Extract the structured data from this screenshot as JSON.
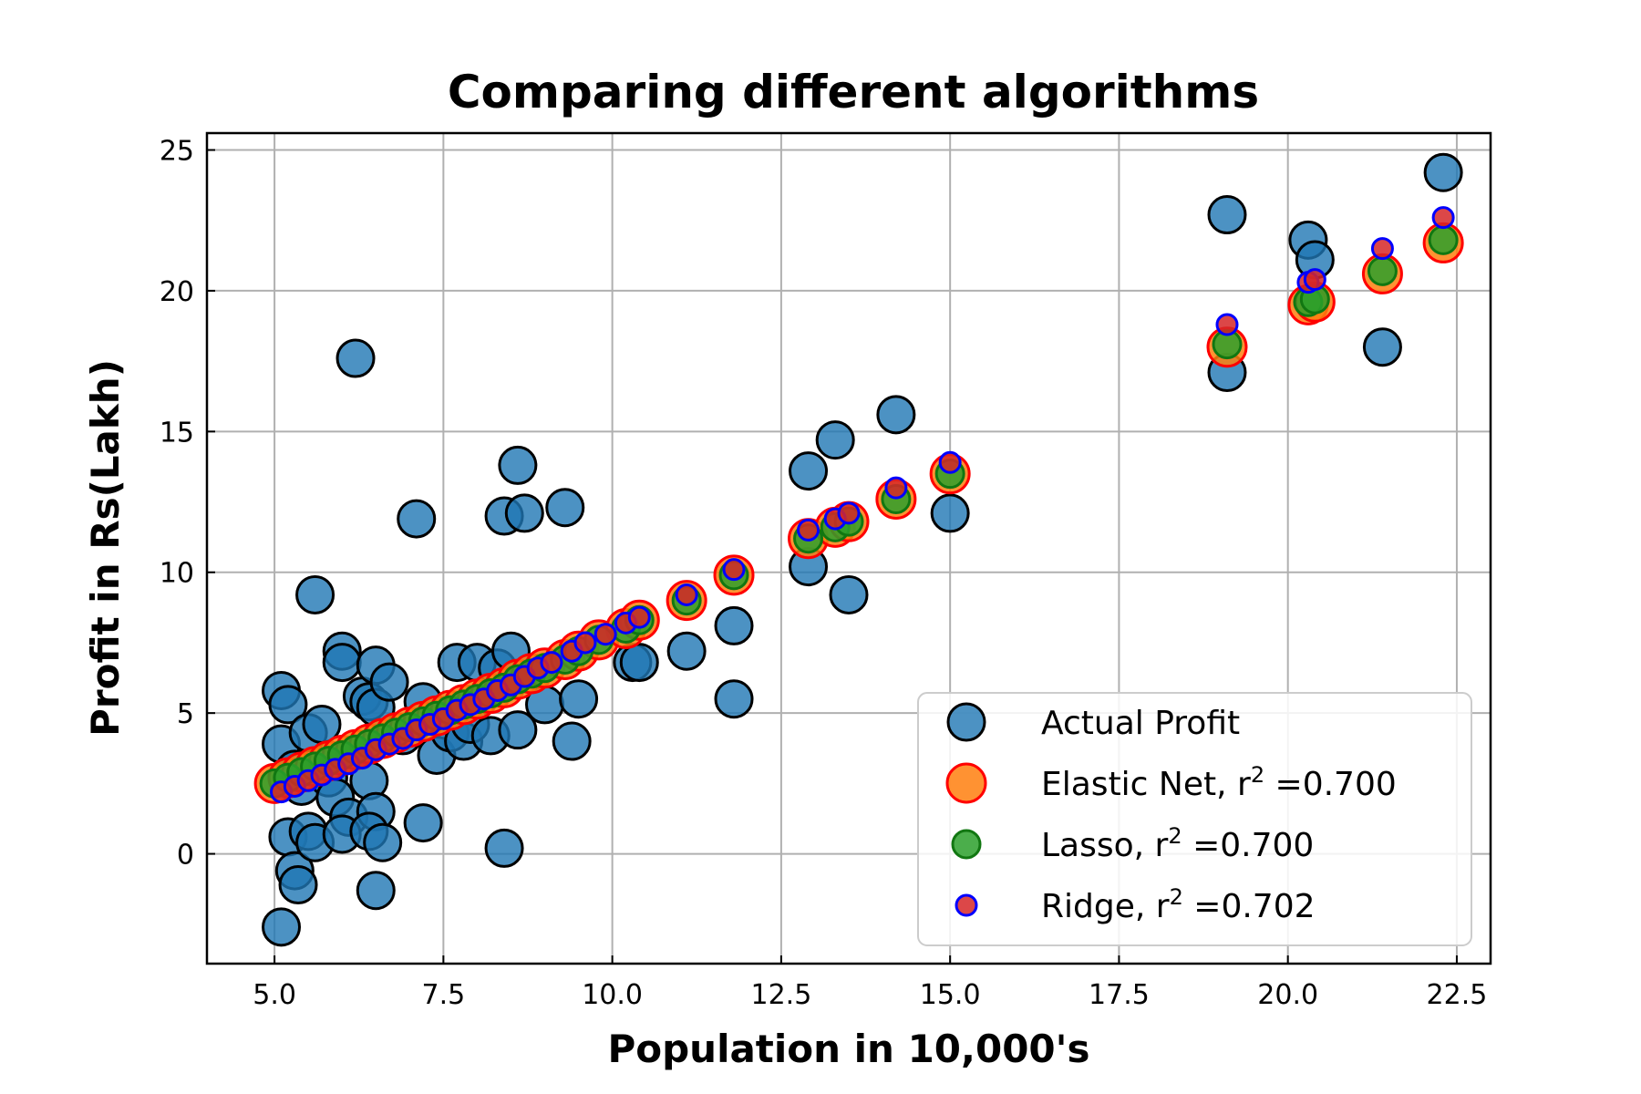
{
  "chart_data": {
    "type": "scatter",
    "title": "Comparing different algorithms",
    "xlabel": "Population in 10,000's",
    "ylabel": "Profit in Rs(Lakh)",
    "xlim": [
      4.0,
      23.0
    ],
    "ylim": [
      -3.9,
      25.6
    ],
    "xticks": [
      5.0,
      7.5,
      10.0,
      12.5,
      15.0,
      17.5,
      20.0,
      22.5
    ],
    "xtick_labels": [
      "5.0",
      "7.5",
      "10.0",
      "12.5",
      "15.0",
      "17.5",
      "20.0",
      "22.5"
    ],
    "yticks": [
      0,
      5,
      10,
      15,
      20,
      25
    ],
    "ytick_labels": [
      "0",
      "5",
      "10",
      "15",
      "20",
      "25"
    ],
    "grid": true,
    "legend_position": "lower-right",
    "series": [
      {
        "name": "Actual Profit",
        "color": "#1f77b4",
        "points": [
          [
            5.1,
            5.8
          ],
          [
            5.2,
            5.3
          ],
          [
            5.1,
            3.9
          ],
          [
            5.3,
            3.0
          ],
          [
            5.4,
            2.4
          ],
          [
            5.2,
            0.6
          ],
          [
            5.3,
            -0.6
          ],
          [
            5.35,
            -1.1
          ],
          [
            5.1,
            -2.6
          ],
          [
            5.5,
            0.8
          ],
          [
            5.6,
            0.4
          ],
          [
            5.5,
            4.3
          ],
          [
            5.7,
            4.6
          ],
          [
            5.6,
            9.2
          ],
          [
            5.8,
            2.7
          ],
          [
            5.9,
            2.0
          ],
          [
            6.0,
            7.2
          ],
          [
            6.0,
            6.8
          ],
          [
            6.1,
            1.3
          ],
          [
            6.0,
            0.7
          ],
          [
            6.2,
            17.6
          ],
          [
            6.3,
            5.6
          ],
          [
            6.4,
            5.4
          ],
          [
            6.5,
            6.7
          ],
          [
            6.5,
            5.2
          ],
          [
            6.4,
            2.6
          ],
          [
            6.5,
            1.5
          ],
          [
            6.4,
            0.8
          ],
          [
            6.6,
            0.4
          ],
          [
            6.5,
            -1.3
          ],
          [
            6.7,
            6.1
          ],
          [
            6.9,
            4.2
          ],
          [
            7.1,
            11.9
          ],
          [
            7.2,
            5.4
          ],
          [
            7.2,
            1.1
          ],
          [
            7.4,
            3.5
          ],
          [
            7.6,
            4.3
          ],
          [
            7.7,
            6.8
          ],
          [
            7.8,
            4.0
          ],
          [
            7.9,
            4.6
          ],
          [
            8.0,
            6.8
          ],
          [
            8.2,
            4.2
          ],
          [
            8.3,
            6.6
          ],
          [
            8.4,
            12.0
          ],
          [
            8.4,
            0.2
          ],
          [
            8.5,
            7.2
          ],
          [
            8.6,
            4.4
          ],
          [
            8.6,
            13.8
          ],
          [
            8.7,
            12.1
          ],
          [
            9.0,
            5.3
          ],
          [
            9.3,
            12.3
          ],
          [
            9.4,
            4.0
          ],
          [
            9.5,
            5.5
          ],
          [
            10.3,
            6.8
          ],
          [
            10.4,
            6.8
          ],
          [
            11.1,
            7.2
          ],
          [
            11.8,
            8.1
          ],
          [
            11.8,
            5.5
          ],
          [
            12.9,
            10.2
          ],
          [
            12.9,
            13.6
          ],
          [
            13.3,
            14.7
          ],
          [
            13.5,
            9.2
          ],
          [
            14.2,
            15.6
          ],
          [
            15.0,
            12.1
          ],
          [
            19.1,
            22.7
          ],
          [
            19.1,
            17.1
          ],
          [
            20.3,
            21.8
          ],
          [
            20.4,
            21.1
          ],
          [
            21.4,
            18.0
          ],
          [
            22.3,
            24.2
          ]
        ]
      },
      {
        "name": "Elastic Net, r² =0.700",
        "label_main": "Elastic Net, r",
        "label_sup": "2",
        "label_value": " =0.700",
        "color": "#ff7f0e",
        "edge_color": "#ff0000",
        "points": [
          [
            5.0,
            2.5
          ],
          [
            5.2,
            2.7
          ],
          [
            5.4,
            2.9
          ],
          [
            5.6,
            3.1
          ],
          [
            5.8,
            3.3
          ],
          [
            6.0,
            3.5
          ],
          [
            6.2,
            3.7
          ],
          [
            6.4,
            3.9
          ],
          [
            6.6,
            4.1
          ],
          [
            6.8,
            4.3
          ],
          [
            7.0,
            4.5
          ],
          [
            7.2,
            4.7
          ],
          [
            7.4,
            4.9
          ],
          [
            7.6,
            5.1
          ],
          [
            7.8,
            5.3
          ],
          [
            8.0,
            5.5
          ],
          [
            8.2,
            5.7
          ],
          [
            8.4,
            5.9
          ],
          [
            8.6,
            6.2
          ],
          [
            8.8,
            6.4
          ],
          [
            9.0,
            6.6
          ],
          [
            9.3,
            6.9
          ],
          [
            9.5,
            7.2
          ],
          [
            9.8,
            7.6
          ],
          [
            10.2,
            8.0
          ],
          [
            10.4,
            8.3
          ],
          [
            11.1,
            9.0
          ],
          [
            11.8,
            9.9
          ],
          [
            12.9,
            11.2
          ],
          [
            13.3,
            11.6
          ],
          [
            13.5,
            11.8
          ],
          [
            14.2,
            12.6
          ],
          [
            15.0,
            13.5
          ],
          [
            19.1,
            18.0
          ],
          [
            20.3,
            19.5
          ],
          [
            20.4,
            19.6
          ],
          [
            21.4,
            20.6
          ],
          [
            22.3,
            21.7
          ]
        ]
      },
      {
        "name": "Lasso, r² =0.700",
        "label_main": "Lasso, r",
        "label_sup": "2",
        "label_value": " =0.700",
        "color": "#2ca02c",
        "edge_color": "#117711",
        "points": [
          [
            5.0,
            2.5
          ],
          [
            5.2,
            2.7
          ],
          [
            5.4,
            2.9
          ],
          [
            5.6,
            3.1
          ],
          [
            5.8,
            3.3
          ],
          [
            6.0,
            3.5
          ],
          [
            6.2,
            3.7
          ],
          [
            6.4,
            3.9
          ],
          [
            6.6,
            4.1
          ],
          [
            6.8,
            4.3
          ],
          [
            7.0,
            4.5
          ],
          [
            7.2,
            4.7
          ],
          [
            7.4,
            4.9
          ],
          [
            7.6,
            5.1
          ],
          [
            7.8,
            5.3
          ],
          [
            8.0,
            5.5
          ],
          [
            8.2,
            5.7
          ],
          [
            8.4,
            5.9
          ],
          [
            8.6,
            6.2
          ],
          [
            8.8,
            6.4
          ],
          [
            9.0,
            6.6
          ],
          [
            9.3,
            6.9
          ],
          [
            9.5,
            7.2
          ],
          [
            9.8,
            7.6
          ],
          [
            10.2,
            8.0
          ],
          [
            10.4,
            8.3
          ],
          [
            11.1,
            9.0
          ],
          [
            11.8,
            9.9
          ],
          [
            12.9,
            11.2
          ],
          [
            13.3,
            11.6
          ],
          [
            13.5,
            11.8
          ],
          [
            14.2,
            12.6
          ],
          [
            15.0,
            13.5
          ],
          [
            19.1,
            18.1
          ],
          [
            20.3,
            19.6
          ],
          [
            20.4,
            19.7
          ],
          [
            21.4,
            20.7
          ],
          [
            22.3,
            21.8
          ]
        ]
      },
      {
        "name": "Ridge, r² =0.702",
        "label_main": "Ridge, r",
        "label_sup": "2",
        "label_value": " =0.702",
        "color": "#d62728",
        "edge_color": "#0000ff",
        "points": [
          [
            5.1,
            2.2
          ],
          [
            5.3,
            2.4
          ],
          [
            5.5,
            2.6
          ],
          [
            5.7,
            2.8
          ],
          [
            5.9,
            3.0
          ],
          [
            6.1,
            3.2
          ],
          [
            6.3,
            3.4
          ],
          [
            6.5,
            3.7
          ],
          [
            6.7,
            3.9
          ],
          [
            6.9,
            4.1
          ],
          [
            7.1,
            4.4
          ],
          [
            7.3,
            4.6
          ],
          [
            7.5,
            4.8
          ],
          [
            7.7,
            5.1
          ],
          [
            7.9,
            5.3
          ],
          [
            8.1,
            5.5
          ],
          [
            8.3,
            5.8
          ],
          [
            8.5,
            6.0
          ],
          [
            8.7,
            6.3
          ],
          [
            8.9,
            6.6
          ],
          [
            9.1,
            6.8
          ],
          [
            9.4,
            7.2
          ],
          [
            9.6,
            7.5
          ],
          [
            9.9,
            7.8
          ],
          [
            10.2,
            8.2
          ],
          [
            10.4,
            8.4
          ],
          [
            11.1,
            9.2
          ],
          [
            11.8,
            10.1
          ],
          [
            12.9,
            11.5
          ],
          [
            13.3,
            11.9
          ],
          [
            13.5,
            12.1
          ],
          [
            14.2,
            13.0
          ],
          [
            15.0,
            13.9
          ],
          [
            19.1,
            18.8
          ],
          [
            20.3,
            20.3
          ],
          [
            20.4,
            20.4
          ],
          [
            21.4,
            21.5
          ],
          [
            22.3,
            22.6
          ]
        ]
      }
    ]
  }
}
